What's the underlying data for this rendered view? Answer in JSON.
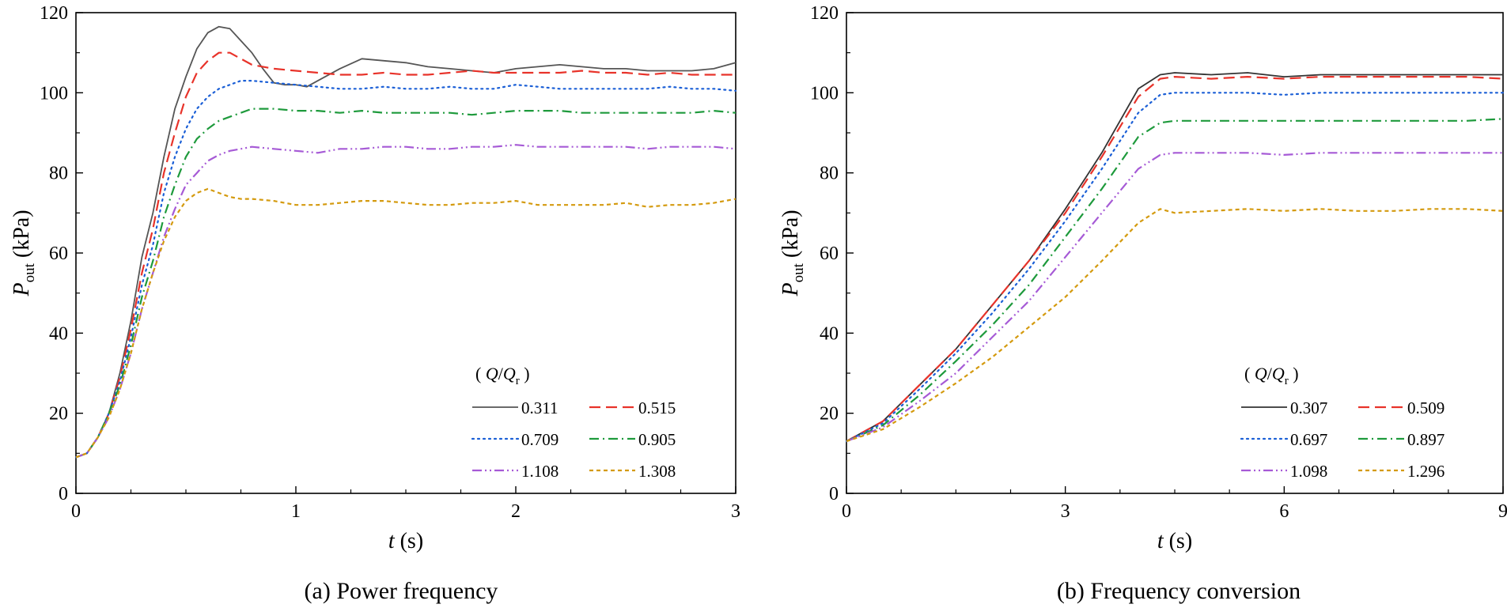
{
  "chart_data": [
    {
      "type": "line",
      "title": "(a) Power frequency",
      "xlabel": "t (s)",
      "ylabel": "P_out (kPa)",
      "xlim": [
        0,
        3
      ],
      "ylim": [
        0,
        120
      ],
      "xticks": [
        0,
        1,
        2,
        3
      ],
      "yticks": [
        0,
        20,
        40,
        60,
        80,
        100,
        120
      ],
      "legend_title": "(Q/Q_r)",
      "legend_location": "bottom-right",
      "series": [
        {
          "name": "0.311",
          "color": "#555555",
          "dash": "solid",
          "x": [
            0,
            0.05,
            0.1,
            0.15,
            0.2,
            0.25,
            0.3,
            0.35,
            0.4,
            0.45,
            0.5,
            0.55,
            0.6,
            0.65,
            0.7,
            0.75,
            0.8,
            0.85,
            0.9,
            0.95,
            1.0,
            1.05,
            1.1,
            1.2,
            1.3,
            1.4,
            1.5,
            1.6,
            1.7,
            1.8,
            1.9,
            2.0,
            2.1,
            2.2,
            2.3,
            2.4,
            2.5,
            2.6,
            2.7,
            2.8,
            2.9,
            3.0
          ],
          "y": [
            9,
            10,
            14,
            20,
            30,
            43,
            59,
            70,
            84,
            96,
            104,
            111,
            115,
            116.5,
            116,
            113,
            110,
            106,
            102.5,
            102,
            102,
            101.5,
            103,
            106,
            108.5,
            108,
            107.5,
            106.5,
            106,
            105.5,
            105,
            106,
            106.5,
            107,
            106.5,
            106,
            106,
            105.5,
            105.5,
            105.5,
            106,
            107.5
          ]
        },
        {
          "name": "0.515",
          "color": "#e8332a",
          "dash": "long-dash",
          "x": [
            0,
            0.05,
            0.1,
            0.15,
            0.2,
            0.25,
            0.3,
            0.35,
            0.4,
            0.45,
            0.5,
            0.55,
            0.6,
            0.65,
            0.7,
            0.75,
            0.8,
            0.85,
            0.9,
            1.0,
            1.1,
            1.2,
            1.3,
            1.4,
            1.5,
            1.6,
            1.7,
            1.8,
            1.9,
            2.0,
            2.1,
            2.2,
            2.3,
            2.4,
            2.5,
            2.6,
            2.7,
            2.8,
            2.9,
            3.0
          ],
          "y": [
            9,
            10,
            14,
            20,
            29,
            41,
            55,
            66,
            80,
            90,
            99,
            105,
            108,
            110,
            110,
            108.5,
            107,
            106.5,
            106,
            105.5,
            105,
            104.5,
            104.5,
            105,
            104.5,
            104.5,
            105,
            105.5,
            105,
            105,
            105,
            105,
            105.5,
            105,
            105,
            104.5,
            105,
            104.5,
            104.5,
            104.5
          ]
        },
        {
          "name": "0.709",
          "color": "#1b5fd6",
          "dash": "dot",
          "x": [
            0,
            0.05,
            0.1,
            0.15,
            0.2,
            0.25,
            0.3,
            0.35,
            0.4,
            0.45,
            0.5,
            0.55,
            0.6,
            0.65,
            0.7,
            0.75,
            0.8,
            0.9,
            1.0,
            1.1,
            1.2,
            1.3,
            1.4,
            1.5,
            1.6,
            1.7,
            1.8,
            1.9,
            2.0,
            2.1,
            2.2,
            2.3,
            2.4,
            2.5,
            2.6,
            2.7,
            2.8,
            2.9,
            3.0
          ],
          "y": [
            9,
            10,
            14,
            20,
            28,
            39,
            52,
            62,
            75,
            84,
            91,
            96,
            99,
            101,
            102,
            103,
            103,
            102.5,
            102,
            101.5,
            101,
            101,
            101.5,
            101,
            101,
            101.5,
            101,
            101,
            102,
            101.5,
            101,
            101,
            101,
            101,
            101,
            101.5,
            101,
            101,
            100.5
          ]
        },
        {
          "name": "0.905",
          "color": "#1e9a3c",
          "dash": "dash-dot",
          "x": [
            0,
            0.05,
            0.1,
            0.15,
            0.2,
            0.25,
            0.3,
            0.35,
            0.4,
            0.45,
            0.5,
            0.55,
            0.6,
            0.65,
            0.7,
            0.75,
            0.8,
            0.9,
            1.0,
            1.1,
            1.2,
            1.3,
            1.4,
            1.5,
            1.6,
            1.7,
            1.8,
            1.9,
            2.0,
            2.1,
            2.2,
            2.3,
            2.4,
            2.5,
            2.6,
            2.7,
            2.8,
            2.9,
            3.0
          ],
          "y": [
            9,
            10,
            14,
            20,
            27,
            37,
            49,
            58,
            69,
            77,
            84,
            88.5,
            91,
            93,
            94,
            95,
            96,
            96,
            95.5,
            95.5,
            95,
            95.5,
            95,
            95,
            95,
            95,
            94.5,
            95,
            95.5,
            95.5,
            95.5,
            95,
            95,
            95,
            95,
            95,
            95,
            95.5,
            95
          ]
        },
        {
          "name": "1.108",
          "color": "#a65ad6",
          "dash": "dash-dot-dot",
          "x": [
            0,
            0.05,
            0.1,
            0.15,
            0.2,
            0.25,
            0.3,
            0.35,
            0.4,
            0.45,
            0.5,
            0.55,
            0.6,
            0.65,
            0.7,
            0.75,
            0.8,
            0.9,
            1.0,
            1.1,
            1.2,
            1.3,
            1.4,
            1.5,
            1.6,
            1.7,
            1.8,
            1.9,
            2.0,
            2.1,
            2.2,
            2.3,
            2.4,
            2.5,
            2.6,
            2.7,
            2.8,
            2.9,
            3.0
          ],
          "y": [
            9,
            10,
            14,
            19,
            26,
            35,
            46,
            55,
            64,
            71,
            77,
            80,
            83,
            84.5,
            85.5,
            86,
            86.5,
            86,
            85.5,
            85,
            86,
            86,
            86.5,
            86.5,
            86,
            86,
            86.5,
            86.5,
            87,
            86.5,
            86.5,
            86.5,
            86.5,
            86.5,
            86,
            86.5,
            86.5,
            86.5,
            86
          ]
        },
        {
          "name": "1.308",
          "color": "#d49a0e",
          "dash": "short-dash",
          "x": [
            0,
            0.05,
            0.1,
            0.15,
            0.2,
            0.25,
            0.3,
            0.35,
            0.4,
            0.45,
            0.5,
            0.55,
            0.6,
            0.65,
            0.7,
            0.75,
            0.8,
            0.9,
            1.0,
            1.1,
            1.2,
            1.3,
            1.4,
            1.5,
            1.6,
            1.7,
            1.8,
            1.9,
            2.0,
            2.1,
            2.2,
            2.3,
            2.4,
            2.5,
            2.6,
            2.7,
            2.8,
            2.9,
            3.0
          ],
          "y": [
            9,
            10,
            14,
            19,
            26,
            35,
            46,
            55,
            63,
            69,
            73,
            75,
            76,
            75,
            74,
            73.5,
            73.5,
            73,
            72,
            72,
            72.5,
            73,
            73,
            72.5,
            72,
            72,
            72.5,
            72.5,
            73,
            72,
            72,
            72,
            72,
            72.5,
            71.5,
            72,
            72,
            72.5,
            73.5
          ]
        }
      ]
    },
    {
      "type": "line",
      "title": "(b) Frequency conversion",
      "xlabel": "t (s)",
      "ylabel": "P_out (kPa)",
      "xlim": [
        0,
        9
      ],
      "ylim": [
        0,
        120
      ],
      "xticks": [
        0,
        3,
        6,
        9
      ],
      "yticks": [
        0,
        20,
        40,
        60,
        80,
        100,
        120
      ],
      "legend_title": "(Q/Q_r)",
      "legend_location": "bottom-right",
      "series": [
        {
          "name": "0.307",
          "color": "#333333",
          "dash": "solid",
          "x": [
            0,
            0.5,
            1.0,
            1.5,
            2.0,
            2.5,
            3.0,
            3.5,
            4.0,
            4.3,
            4.5,
            5.0,
            5.5,
            6.0,
            6.5,
            7.0,
            7.5,
            8.0,
            8.5,
            9.0
          ],
          "y": [
            13,
            18,
            27,
            36,
            47,
            58,
            71,
            85,
            101,
            104.5,
            105,
            104.5,
            105,
            104,
            104.5,
            104.5,
            104.5,
            104.5,
            104.5,
            104.5
          ]
        },
        {
          "name": "0.509",
          "color": "#e8332a",
          "dash": "long-dash",
          "x": [
            0,
            0.5,
            1.0,
            1.5,
            2.0,
            2.5,
            3.0,
            3.5,
            4.0,
            4.3,
            4.5,
            5.0,
            5.5,
            6.0,
            6.5,
            7.0,
            7.5,
            8.0,
            8.5,
            9.0
          ],
          "y": [
            13,
            18,
            27,
            36,
            47,
            58,
            70,
            84,
            99,
            103.5,
            104,
            103.5,
            104,
            103.5,
            104,
            104,
            104,
            104,
            104,
            103.5
          ]
        },
        {
          "name": "0.697",
          "color": "#1b5fd6",
          "dash": "dot",
          "x": [
            0,
            0.5,
            1.0,
            1.5,
            2.0,
            2.5,
            3.0,
            3.5,
            4.0,
            4.3,
            4.5,
            5.0,
            5.5,
            6.0,
            6.5,
            7.0,
            7.5,
            8.0,
            8.5,
            9.0
          ],
          "y": [
            13,
            17.5,
            26,
            35,
            45,
            56,
            68,
            81,
            95,
            99.5,
            100,
            100,
            100,
            99.5,
            100,
            100,
            100,
            100,
            100,
            100
          ]
        },
        {
          "name": "0.897",
          "color": "#1e9a3c",
          "dash": "dash-dot",
          "x": [
            0,
            0.5,
            1.0,
            1.5,
            2.0,
            2.5,
            3.0,
            3.5,
            4.0,
            4.3,
            4.5,
            5.0,
            5.5,
            6.0,
            6.5,
            7.0,
            7.5,
            8.0,
            8.5,
            9.0
          ],
          "y": [
            13,
            17,
            24.5,
            33,
            42,
            52,
            64,
            76,
            89,
            92.5,
            93,
            93,
            93,
            93,
            93,
            93,
            93,
            93,
            93,
            93.5
          ]
        },
        {
          "name": "1.098",
          "color": "#a65ad6",
          "dash": "dash-dot-dot",
          "x": [
            0,
            0.5,
            1.0,
            1.5,
            2.0,
            2.5,
            3.0,
            3.5,
            4.0,
            4.3,
            4.5,
            5.0,
            5.5,
            6.0,
            6.5,
            7.0,
            7.5,
            8.0,
            8.5,
            9.0
          ],
          "y": [
            13,
            16.5,
            23,
            30,
            39,
            48,
            59,
            70,
            81,
            84.5,
            85,
            85,
            85,
            84.5,
            85,
            85,
            85,
            85,
            85,
            85
          ]
        },
        {
          "name": "1.296",
          "color": "#d49a0e",
          "dash": "short-dash",
          "x": [
            0,
            0.5,
            1.0,
            1.5,
            2.0,
            2.5,
            3.0,
            3.5,
            4.0,
            4.3,
            4.5,
            5.0,
            5.5,
            6.0,
            6.5,
            7.0,
            7.5,
            8.0,
            8.5,
            9.0
          ],
          "y": [
            13,
            16,
            21.5,
            27.5,
            34,
            41.5,
            49,
            58,
            67.5,
            71,
            70,
            70.5,
            71,
            70.5,
            71,
            70.5,
            70.5,
            71,
            71,
            70.5
          ]
        }
      ]
    }
  ]
}
